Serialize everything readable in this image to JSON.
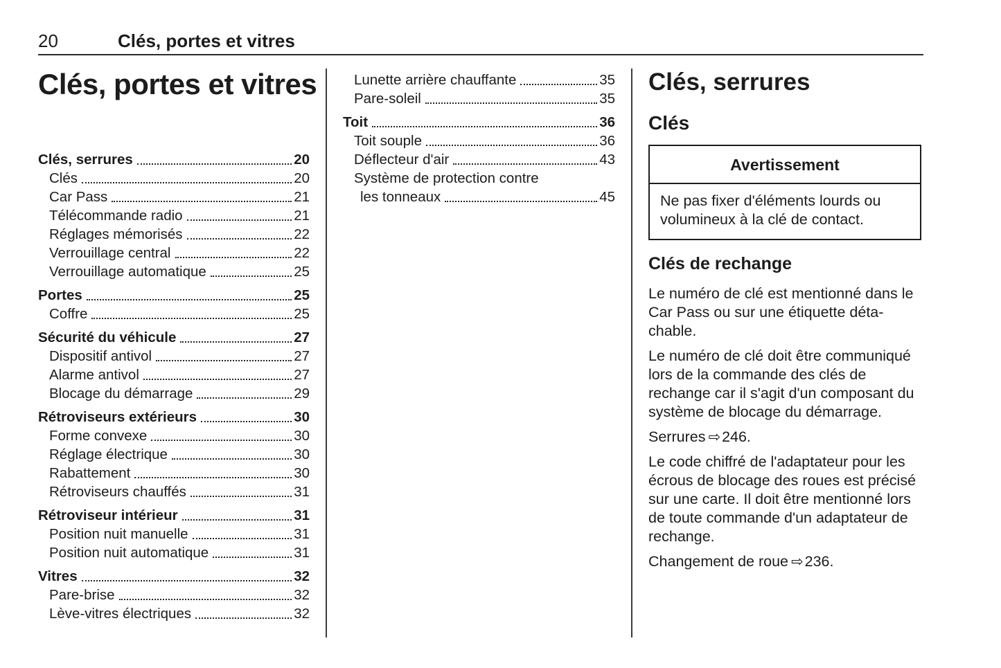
{
  "header": {
    "page_number": "20",
    "chapter_title": "Clés, portes et vitres"
  },
  "main_title": "Clés, portes et vitres",
  "toc_column_1": [
    {
      "label": "Clés, serrures",
      "page": "20",
      "style": "group"
    },
    {
      "label": "Clés",
      "page": "20",
      "style": "sub"
    },
    {
      "label": "Car Pass",
      "page": "21",
      "style": "sub"
    },
    {
      "label": "Télécommande radio",
      "page": "21",
      "style": "sub"
    },
    {
      "label": "Réglages mémorisés",
      "page": "22",
      "style": "sub"
    },
    {
      "label": "Verrouillage central",
      "page": "22",
      "style": "sub"
    },
    {
      "label": "Verrouillage automatique",
      "page": "25",
      "style": "sub"
    },
    {
      "label": "Portes",
      "page": "25",
      "style": "group gap"
    },
    {
      "label": "Coffre",
      "page": "25",
      "style": "sub"
    },
    {
      "label": "Sécurité du véhicule",
      "page": "27",
      "style": "group gap"
    },
    {
      "label": "Dispositif antivol",
      "page": "27",
      "style": "sub"
    },
    {
      "label": "Alarme antivol",
      "page": "27",
      "style": "sub"
    },
    {
      "label": "Blocage du démarrage",
      "page": "29",
      "style": "sub"
    },
    {
      "label": "Rétroviseurs extérieurs",
      "page": "30",
      "style": "group gap"
    },
    {
      "label": "Forme convexe",
      "page": "30",
      "style": "sub"
    },
    {
      "label": "Réglage électrique",
      "page": "30",
      "style": "sub"
    },
    {
      "label": "Rabattement",
      "page": "30",
      "style": "sub"
    },
    {
      "label": "Rétroviseurs chauffés",
      "page": "31",
      "style": "sub"
    },
    {
      "label": "Rétroviseur intérieur",
      "page": "31",
      "style": "group gap"
    },
    {
      "label": "Position nuit manuelle",
      "page": "31",
      "style": "sub"
    },
    {
      "label": "Position nuit automatique",
      "page": "31",
      "style": "sub"
    },
    {
      "label": "Vitres",
      "page": "32",
      "style": "group gap"
    },
    {
      "label": "Pare-brise",
      "page": "32",
      "style": "sub"
    },
    {
      "label": "Lève-vitres électriques",
      "page": "32",
      "style": "sub"
    }
  ],
  "toc_column_2": [
    {
      "label": "Lunette arrière chauffante",
      "page": "35",
      "style": "sub"
    },
    {
      "label": "Pare-soleil",
      "page": "35",
      "style": "sub"
    },
    {
      "label": "Toit",
      "page": "36",
      "style": "group gap"
    },
    {
      "label": "Toit souple",
      "page": "36",
      "style": "sub"
    },
    {
      "label": "Déflecteur d'air",
      "page": "43",
      "style": "sub"
    },
    {
      "label": "Système de protection contre",
      "page": "",
      "style": "sub"
    },
    {
      "label": "les tonneaux",
      "page": "45",
      "style": "sub sub2"
    }
  ],
  "article": {
    "section_title": "Clés, serrures",
    "subsection_title": "Clés",
    "warning": {
      "title": "Avertissement",
      "body": "Ne pas fixer d'éléments lourds ou volumineux à la clé de contact."
    },
    "subheading": "Clés de rechange",
    "paragraphs": [
      {
        "type": "body",
        "text": "Le numéro de clé est mentionné dans le Car Pass ou sur une étiquette déta­chable."
      },
      {
        "type": "body",
        "text": "Le numéro de clé doit être communi­qué lors de la commande des clés de rechange car il s'agit d'un composant du système de blocage du démar­rage."
      },
      {
        "type": "ref",
        "label": "Serrures",
        "arrow": "⇨",
        "page": "246."
      },
      {
        "type": "body",
        "text": "Le code chiffré de l'adaptateur pour les écrous de blocage des roues est précisé sur une carte. Il doit être mentionné lors de toute commande d'un adaptateur de rechange."
      },
      {
        "type": "ref",
        "label": "Changement de roue",
        "arrow": "⇨",
        "page": "236."
      }
    ]
  }
}
